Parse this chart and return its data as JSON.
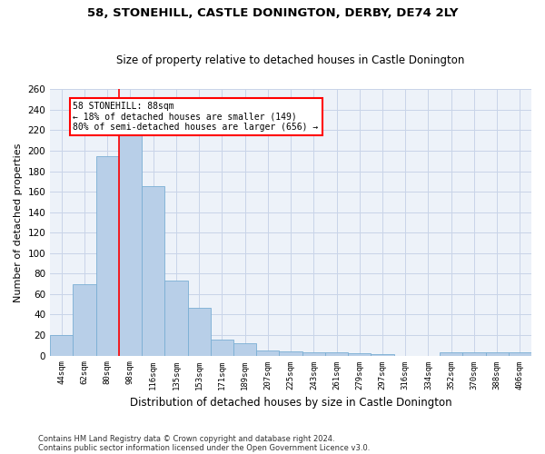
{
  "title1": "58, STONEHILL, CASTLE DONINGTON, DERBY, DE74 2LY",
  "title2": "Size of property relative to detached houses in Castle Donington",
  "xlabel": "Distribution of detached houses by size in Castle Donington",
  "ylabel": "Number of detached properties",
  "categories": [
    "44sqm",
    "62sqm",
    "80sqm",
    "98sqm",
    "116sqm",
    "135sqm",
    "153sqm",
    "171sqm",
    "189sqm",
    "207sqm",
    "225sqm",
    "243sqm",
    "261sqm",
    "279sqm",
    "297sqm",
    "316sqm",
    "334sqm",
    "352sqm",
    "370sqm",
    "388sqm",
    "406sqm"
  ],
  "values": [
    20,
    70,
    195,
    215,
    165,
    73,
    47,
    16,
    12,
    5,
    4,
    3,
    3,
    2,
    1,
    0,
    0,
    3,
    3,
    3,
    3
  ],
  "bar_color": "#b8cfe8",
  "bar_edge_color": "#7aaed4",
  "grid_color": "#c8d4e8",
  "background_color": "#edf2f9",
  "annotation_text": "58 STONEHILL: 88sqm\n← 18% of detached houses are smaller (149)\n80% of semi-detached houses are larger (656) →",
  "footnote1": "Contains HM Land Registry data © Crown copyright and database right 2024.",
  "footnote2": "Contains public sector information licensed under the Open Government Licence v3.0.",
  "ylim": [
    0,
    260
  ],
  "yticks": [
    0,
    20,
    40,
    60,
    80,
    100,
    120,
    140,
    160,
    180,
    200,
    220,
    240,
    260
  ]
}
